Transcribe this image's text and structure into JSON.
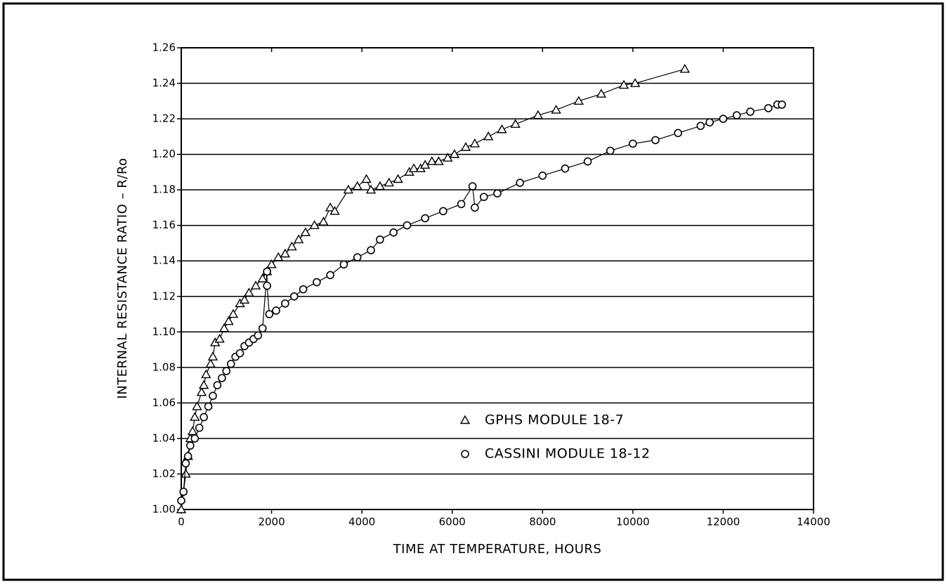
{
  "chart_data": {
    "type": "scatter",
    "xlabel": "TIME AT TEMPERATURE, HOURS",
    "ylabel": "INTERNAL RESISTANCE RATIO – R/Ro",
    "xlim": [
      0,
      14000
    ],
    "xticks": [
      0,
      2000,
      4000,
      6000,
      8000,
      10000,
      12000,
      14000
    ],
    "ylim": [
      1.0,
      1.26
    ],
    "yticks": [
      {
        "value": 1.0,
        "label": "1.00"
      },
      1.02,
      1.04,
      1.06,
      1.08,
      {
        "value": 1.1,
        "label": "1.10"
      },
      1.12,
      1.14,
      1.16,
      1.18,
      {
        "value": 1.2,
        "label": "1.20"
      },
      1.22,
      1.24,
      1.26
    ],
    "grid": true,
    "series": [
      {
        "name": "GPHS MODULE 18-7",
        "color": "#000000",
        "marker": "triangle",
        "x": [
          0,
          100,
          150,
          200,
          250,
          300,
          350,
          450,
          500,
          550,
          650,
          700,
          750,
          850,
          950,
          1050,
          1150,
          1300,
          1400,
          1500,
          1650,
          1800,
          1900,
          2000,
          2150,
          2300,
          2450,
          2600,
          2750,
          2950,
          3150,
          3300,
          3400,
          3700,
          3900,
          4100,
          4200,
          4400,
          4600,
          4800,
          5050,
          5150,
          5300,
          5400,
          5550,
          5700,
          5900,
          6050,
          6300,
          6500,
          6800,
          7100,
          7400,
          7900,
          8300,
          8800,
          9300,
          9800,
          10050,
          11150
        ],
        "values": [
          1.0,
          1.02,
          1.03,
          1.04,
          1.044,
          1.052,
          1.058,
          1.066,
          1.07,
          1.076,
          1.082,
          1.086,
          1.094,
          1.096,
          1.102,
          1.106,
          1.11,
          1.116,
          1.118,
          1.122,
          1.126,
          1.13,
          1.134,
          1.138,
          1.142,
          1.144,
          1.148,
          1.152,
          1.156,
          1.16,
          1.162,
          1.17,
          1.168,
          1.18,
          1.182,
          1.186,
          1.18,
          1.182,
          1.184,
          1.186,
          1.19,
          1.192,
          1.192,
          1.194,
          1.196,
          1.196,
          1.198,
          1.2,
          1.204,
          1.206,
          1.21,
          1.214,
          1.217,
          1.222,
          1.225,
          1.23,
          1.234,
          1.239,
          1.24,
          1.248
        ]
      },
      {
        "name": "CASSINI MODULE 18-12",
        "color": "#000000",
        "marker": "circle",
        "x": [
          0,
          50,
          100,
          150,
          200,
          300,
          400,
          500,
          600,
          700,
          800,
          900,
          1000,
          1100,
          1200,
          1300,
          1400,
          1500,
          1600,
          1700,
          1800,
          1900,
          1900,
          1950,
          2100,
          2300,
          2500,
          2700,
          3000,
          3300,
          3600,
          3900,
          4200,
          4400,
          4700,
          5000,
          5400,
          5800,
          6200,
          6450,
          6500,
          6700,
          7000,
          7500,
          8000,
          8500,
          9000,
          9500,
          10000,
          10500,
          11000,
          11500,
          11700,
          12000,
          12300,
          12600,
          13000,
          13200,
          13300
        ],
        "values": [
          1.005,
          1.01,
          1.026,
          1.03,
          1.036,
          1.04,
          1.046,
          1.052,
          1.058,
          1.064,
          1.07,
          1.074,
          1.078,
          1.082,
          1.086,
          1.088,
          1.092,
          1.094,
          1.096,
          1.098,
          1.102,
          1.134,
          1.126,
          1.11,
          1.112,
          1.116,
          1.12,
          1.124,
          1.128,
          1.132,
          1.138,
          1.142,
          1.146,
          1.152,
          1.156,
          1.16,
          1.164,
          1.168,
          1.172,
          1.182,
          1.17,
          1.176,
          1.178,
          1.184,
          1.188,
          1.192,
          1.196,
          1.202,
          1.206,
          1.208,
          1.212,
          1.216,
          1.218,
          1.22,
          1.222,
          1.224,
          1.226,
          1.228,
          1.228
        ]
      }
    ]
  }
}
